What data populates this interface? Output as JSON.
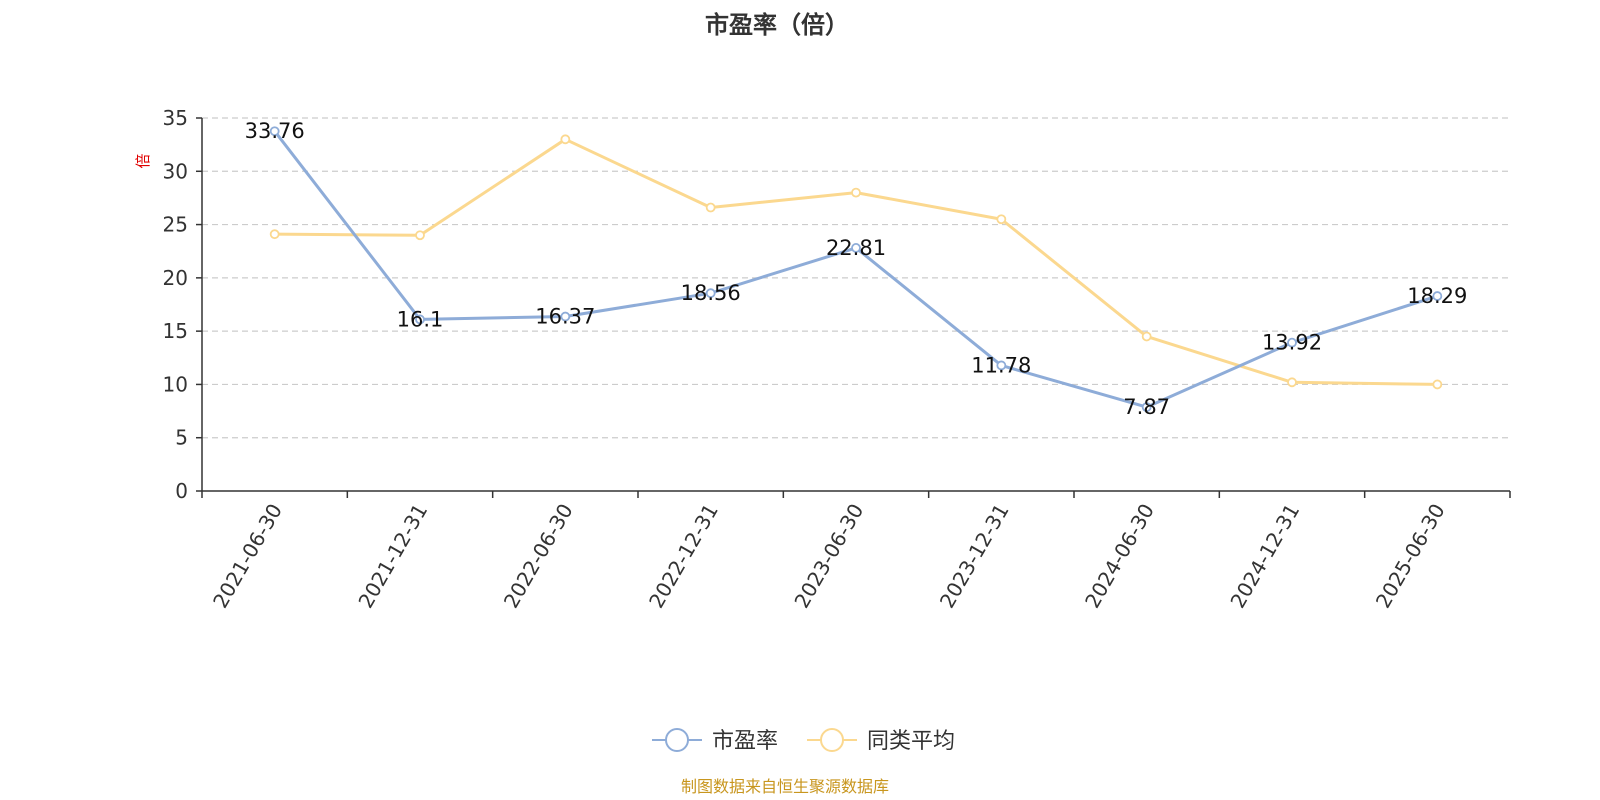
{
  "chart_data": {
    "type": "line",
    "title": "市盈率（倍）",
    "ylabel": "倍",
    "xlabel": "",
    "categories": [
      "2021-06-30",
      "2021-12-31",
      "2022-06-30",
      "2022-12-31",
      "2023-06-30",
      "2023-12-31",
      "2024-06-30",
      "2024-12-31",
      "2025-06-30"
    ],
    "ylim": [
      0,
      35
    ],
    "yticks": [
      "0",
      "5",
      "10",
      "15",
      "20",
      "25",
      "30",
      "35"
    ],
    "grid": true,
    "legend_position": "bottom",
    "series": [
      {
        "name": "市盈率",
        "color": "#8eacd8",
        "show_labels": true,
        "values": [
          33.76,
          16.1,
          16.37,
          18.56,
          22.81,
          11.78,
          7.87,
          13.92,
          18.29
        ],
        "labels": [
          "33.76",
          "16.1",
          "16.37",
          "18.56",
          "22.81",
          "11.78",
          "7.87",
          "13.92",
          "18.29"
        ]
      },
      {
        "name": "同类平均",
        "color": "#fbd88f",
        "show_labels": false,
        "values": [
          24.1,
          24.0,
          33.0,
          26.6,
          28.0,
          25.5,
          14.5,
          10.2,
          10.0
        ]
      }
    ],
    "source_note": "制图数据来自恒生聚源数据库"
  }
}
